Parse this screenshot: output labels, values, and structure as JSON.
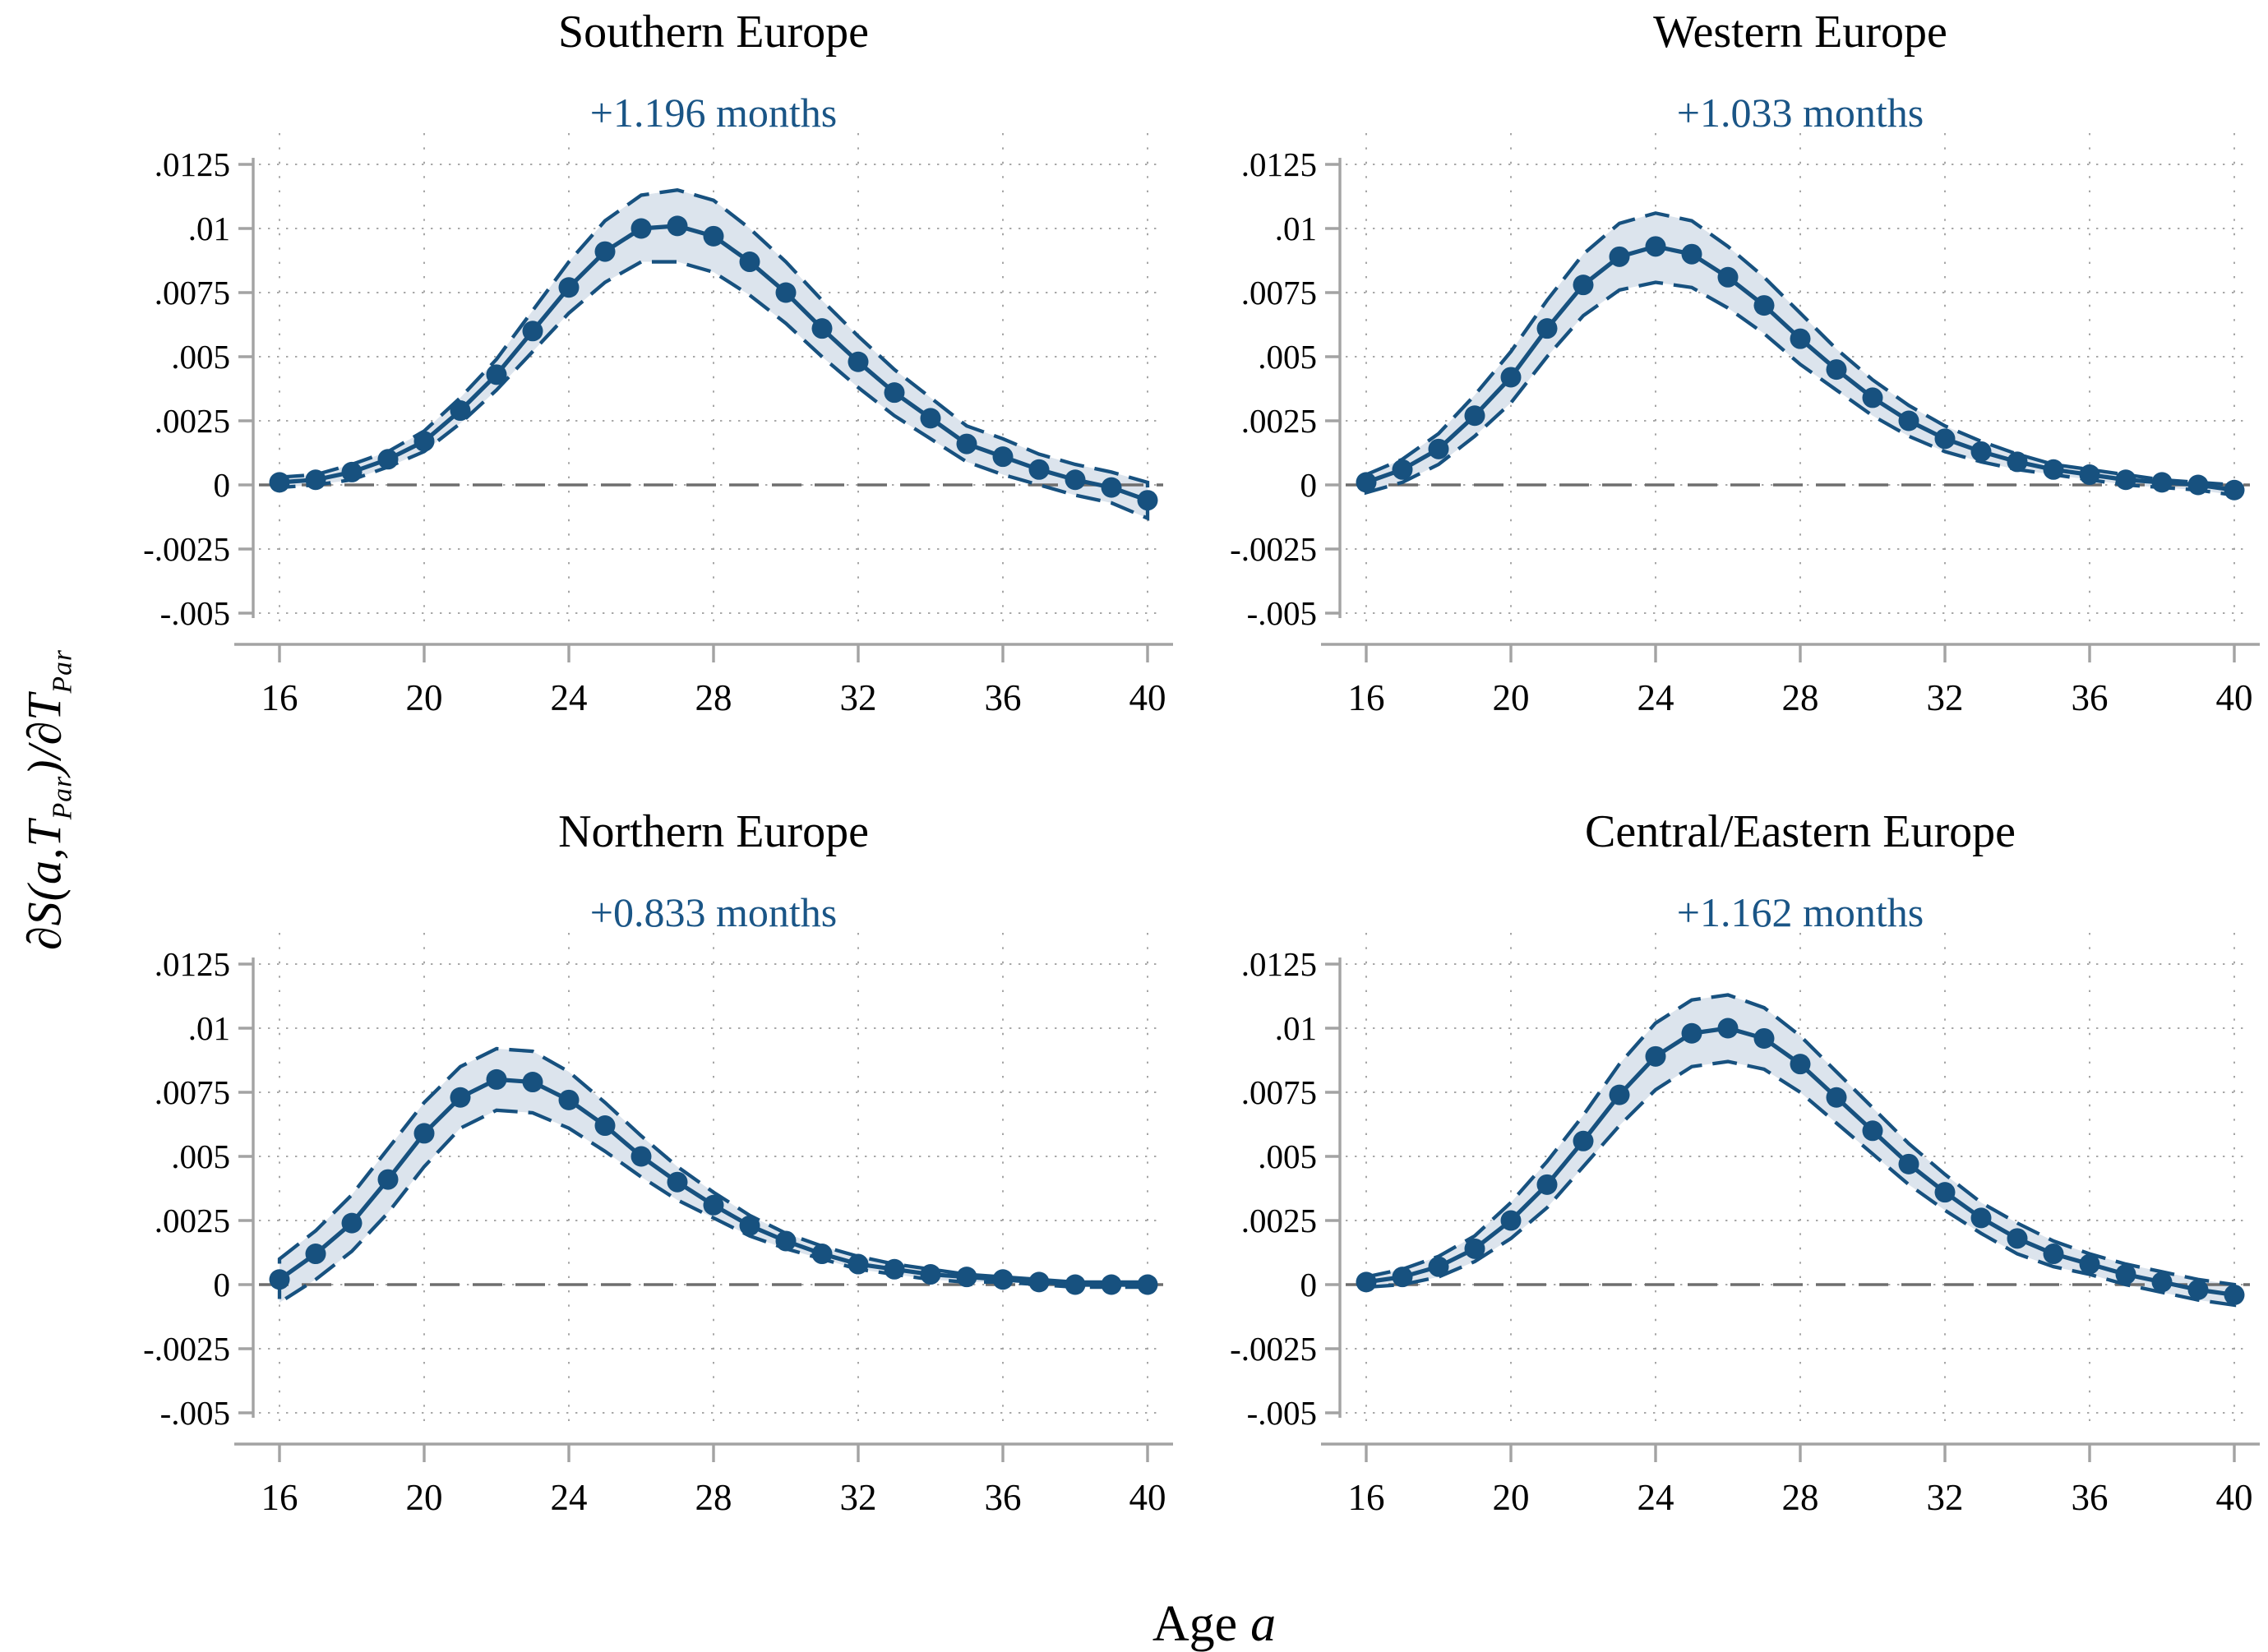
{
  "figure": {
    "xlabel": {
      "text": "Age",
      "var": "a"
    },
    "ylabel": {
      "full": "∂S(a,T_Par)/∂T_Par",
      "p1": "∂S(a,T",
      "s1": "Par",
      "p2": ")/∂T",
      "s2": "Par"
    }
  },
  "style": {
    "line_color": "#17517f",
    "band_fill": "#dce4ed",
    "band_edge": "#17517f",
    "annotation_color": "#1a5586",
    "zero_line_color": "#6e6e6e",
    "grid_color": "#9c9c9c",
    "axis_color": "#a3a3a3",
    "text_color": "#000000"
  },
  "axes": {
    "x": {
      "min": 16,
      "max": 40,
      "ticks": [
        16,
        20,
        24,
        28,
        32,
        36,
        40
      ]
    },
    "y": {
      "min": -0.005,
      "max": 0.0125,
      "ticks": [
        0.0125,
        0.01,
        0.0075,
        0.005,
        0.0025,
        0,
        -0.0025,
        -0.005
      ],
      "tick_labels": [
        ".0125",
        ".01",
        ".0075",
        ".005",
        ".0025",
        "0",
        "-.0025",
        "-.005"
      ]
    }
  },
  "chart_data": [
    {
      "type": "line",
      "title": "Southern Europe",
      "annotation": "+1.196 months",
      "xlabel": "Age a",
      "ylabel": "∂S(a,T_Par)/∂T_Par",
      "xlim": [
        16,
        40
      ],
      "ylim": [
        -0.005,
        0.0125
      ],
      "xticks": [
        16,
        20,
        24,
        28,
        32,
        36,
        40
      ],
      "yticks": [
        0.0125,
        0.01,
        0.0075,
        0.005,
        0.0025,
        0,
        -0.0025,
        -0.005
      ],
      "grid": true,
      "zero_line": 0,
      "x": [
        16,
        17,
        18,
        19,
        20,
        21,
        22,
        23,
        24,
        25,
        26,
        27,
        28,
        29,
        30,
        31,
        32,
        33,
        34,
        35,
        36,
        37,
        38,
        39,
        40
      ],
      "series": [
        {
          "name": "estimate",
          "values": [
            0.0001,
            0.0002,
            0.0005,
            0.001,
            0.0017,
            0.0029,
            0.0043,
            0.006,
            0.0077,
            0.0091,
            0.01,
            0.0101,
            0.0097,
            0.0087,
            0.0075,
            0.0061,
            0.0048,
            0.0036,
            0.0026,
            0.0016,
            0.0011,
            0.0006,
            0.0002,
            -0.0001,
            -0.0006
          ]
        },
        {
          "name": "ci_upper",
          "values": [
            0.0003,
            0.0004,
            0.0008,
            0.0013,
            0.0021,
            0.0034,
            0.0049,
            0.0068,
            0.0087,
            0.0103,
            0.0113,
            0.0115,
            0.0111,
            0.01,
            0.0087,
            0.0072,
            0.0058,
            0.0045,
            0.0034,
            0.0023,
            0.0018,
            0.0012,
            0.0008,
            0.0005,
            0.0001
          ]
        },
        {
          "name": "ci_lower",
          "values": [
            -0.0001,
            0.0,
            0.0002,
            0.0007,
            0.0013,
            0.0024,
            0.0037,
            0.0052,
            0.0067,
            0.0079,
            0.0087,
            0.0087,
            0.0083,
            0.0074,
            0.0063,
            0.005,
            0.0038,
            0.0027,
            0.0018,
            0.0009,
            0.0004,
            0.0,
            -0.0004,
            -0.0007,
            -0.0013
          ]
        }
      ]
    },
    {
      "type": "line",
      "title": "Western Europe",
      "annotation": "+1.033 months",
      "xlabel": "Age a",
      "ylabel": "∂S(a,T_Par)/∂T_Par",
      "xlim": [
        16,
        40
      ],
      "ylim": [
        -0.005,
        0.0125
      ],
      "xticks": [
        16,
        20,
        24,
        28,
        32,
        36,
        40
      ],
      "yticks": [
        0.0125,
        0.01,
        0.0075,
        0.005,
        0.0025,
        0,
        -0.0025,
        -0.005
      ],
      "grid": true,
      "zero_line": 0,
      "x": [
        16,
        17,
        18,
        19,
        20,
        21,
        22,
        23,
        24,
        25,
        26,
        27,
        28,
        29,
        30,
        31,
        32,
        33,
        34,
        35,
        36,
        37,
        38,
        39,
        40
      ],
      "series": [
        {
          "name": "estimate",
          "values": [
            0.0001,
            0.0006,
            0.0014,
            0.0027,
            0.0042,
            0.0061,
            0.0078,
            0.0089,
            0.0093,
            0.009,
            0.0081,
            0.007,
            0.0057,
            0.0045,
            0.0034,
            0.0025,
            0.0018,
            0.0013,
            0.0009,
            0.0006,
            0.0004,
            0.0002,
            0.0001,
            0.0,
            -0.0002
          ]
        },
        {
          "name": "ci_upper",
          "values": [
            0.0004,
            0.001,
            0.002,
            0.0035,
            0.0052,
            0.0072,
            0.009,
            0.0102,
            0.0106,
            0.0103,
            0.0093,
            0.0081,
            0.0067,
            0.0053,
            0.0041,
            0.0031,
            0.0023,
            0.0017,
            0.0012,
            0.0008,
            0.0006,
            0.0004,
            0.0002,
            0.0001,
            0.0
          ]
        },
        {
          "name": "ci_lower",
          "values": [
            -0.0003,
            0.0001,
            0.0008,
            0.0019,
            0.0032,
            0.005,
            0.0066,
            0.0076,
            0.0079,
            0.0077,
            0.0069,
            0.0059,
            0.0047,
            0.0037,
            0.0027,
            0.0019,
            0.0013,
            0.0009,
            0.0006,
            0.0004,
            0.0002,
            0.0,
            -0.0001,
            -0.0002,
            -0.0004
          ]
        }
      ]
    },
    {
      "type": "line",
      "title": "Northern Europe",
      "annotation": "+0.833 months",
      "xlabel": "Age a",
      "ylabel": "∂S(a,T_Par)/∂T_Par",
      "xlim": [
        16,
        40
      ],
      "ylim": [
        -0.005,
        0.0125
      ],
      "xticks": [
        16,
        20,
        24,
        28,
        32,
        36,
        40
      ],
      "yticks": [
        0.0125,
        0.01,
        0.0075,
        0.005,
        0.0025,
        0,
        -0.0025,
        -0.005
      ],
      "grid": true,
      "zero_line": 0,
      "x": [
        16,
        17,
        18,
        19,
        20,
        21,
        22,
        23,
        24,
        25,
        26,
        27,
        28,
        29,
        30,
        31,
        32,
        33,
        34,
        35,
        36,
        37,
        38,
        39,
        40
      ],
      "series": [
        {
          "name": "estimate",
          "values": [
            0.0002,
            0.0012,
            0.0024,
            0.0041,
            0.0059,
            0.0073,
            0.008,
            0.0079,
            0.0072,
            0.0062,
            0.005,
            0.004,
            0.0031,
            0.0023,
            0.0017,
            0.0012,
            0.0008,
            0.0006,
            0.0004,
            0.0003,
            0.0002,
            0.0001,
            0.0,
            0.0,
            0.0
          ]
        },
        {
          "name": "ci_upper",
          "values": [
            0.001,
            0.0021,
            0.0035,
            0.0053,
            0.0071,
            0.0085,
            0.0092,
            0.0091,
            0.0083,
            0.0071,
            0.0058,
            0.0046,
            0.0036,
            0.0027,
            0.002,
            0.0015,
            0.0011,
            0.0008,
            0.0006,
            0.0004,
            0.0003,
            0.0002,
            0.0001,
            0.0001,
            0.0001
          ]
        },
        {
          "name": "ci_lower",
          "values": [
            -0.0007,
            0.0002,
            0.0013,
            0.0028,
            0.0046,
            0.0061,
            0.0068,
            0.0067,
            0.0061,
            0.0052,
            0.0042,
            0.0033,
            0.0026,
            0.0019,
            0.0014,
            0.001,
            0.0006,
            0.0004,
            0.0002,
            0.0001,
            0.0001,
            0.0,
            -0.0001,
            -0.0001,
            -0.0001
          ]
        }
      ]
    },
    {
      "type": "line",
      "title": "Central/Eastern Europe",
      "annotation": "+1.162 months",
      "xlabel": "Age a",
      "ylabel": "∂S(a,T_Par)/∂T_Par",
      "xlim": [
        16,
        40
      ],
      "ylim": [
        -0.005,
        0.0125
      ],
      "xticks": [
        16,
        20,
        24,
        28,
        32,
        36,
        40
      ],
      "yticks": [
        0.0125,
        0.01,
        0.0075,
        0.005,
        0.0025,
        0,
        -0.0025,
        -0.005
      ],
      "grid": true,
      "zero_line": 0,
      "x": [
        16,
        17,
        18,
        19,
        20,
        21,
        22,
        23,
        24,
        25,
        26,
        27,
        28,
        29,
        30,
        31,
        32,
        33,
        34,
        35,
        36,
        37,
        38,
        39,
        40
      ],
      "series": [
        {
          "name": "estimate",
          "values": [
            0.0001,
            0.0003,
            0.0007,
            0.0014,
            0.0025,
            0.0039,
            0.0056,
            0.0074,
            0.0089,
            0.0098,
            0.01,
            0.0096,
            0.0086,
            0.0073,
            0.006,
            0.0047,
            0.0036,
            0.0026,
            0.0018,
            0.0012,
            0.0008,
            0.0004,
            0.0001,
            -0.0002,
            -0.0004
          ]
        },
        {
          "name": "ci_upper",
          "values": [
            0.0003,
            0.0006,
            0.0011,
            0.0019,
            0.0032,
            0.0048,
            0.0066,
            0.0086,
            0.0102,
            0.0111,
            0.0113,
            0.0108,
            0.0097,
            0.0083,
            0.0069,
            0.0055,
            0.0043,
            0.0032,
            0.0024,
            0.0017,
            0.0012,
            0.0008,
            0.0005,
            0.0002,
            0.0
          ]
        },
        {
          "name": "ci_lower",
          "values": [
            -0.0001,
            0.0,
            0.0003,
            0.0009,
            0.0018,
            0.003,
            0.0046,
            0.0062,
            0.0076,
            0.0085,
            0.0087,
            0.0084,
            0.0075,
            0.0063,
            0.0051,
            0.0039,
            0.0029,
            0.002,
            0.0012,
            0.0007,
            0.0004,
            0.0,
            -0.0003,
            -0.0006,
            -0.0008
          ]
        }
      ]
    }
  ]
}
